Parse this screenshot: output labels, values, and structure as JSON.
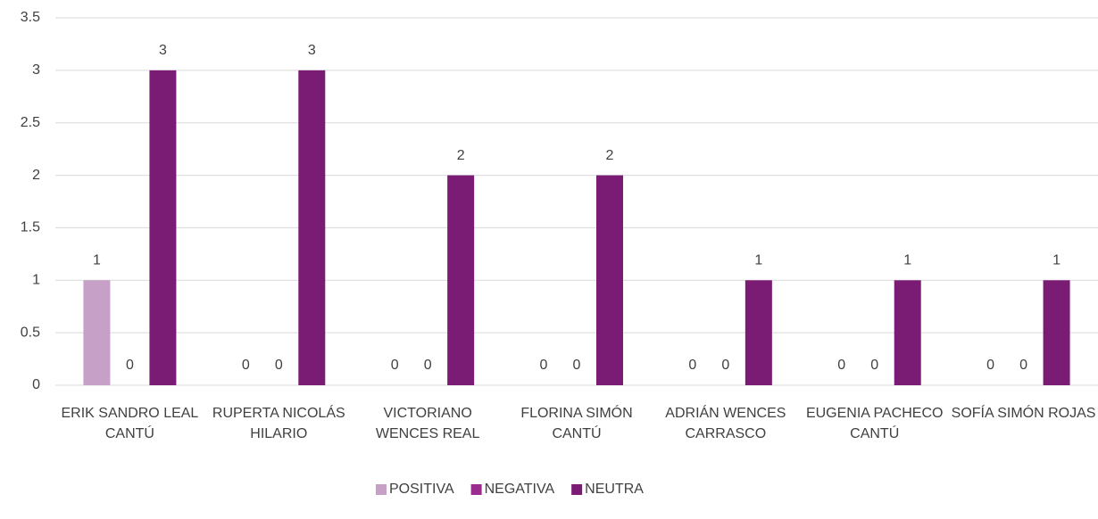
{
  "chart_data": {
    "type": "bar",
    "categories": [
      "ERIK SANDRO LEAL CANTÚ",
      "RUPERTA NICOLÁS HILARIO",
      "VICTORIANO WENCES REAL",
      "FLORINA SIMÓN CANTÚ",
      "ADRIÁN WENCES CARRASCO",
      "EUGENIA PACHECO CANTÚ",
      "SOFÍA SIMÓN ROJAS"
    ],
    "series": [
      {
        "name": "POSITIVA",
        "color": "#c6a0c6",
        "values": [
          1,
          0,
          0,
          0,
          0,
          0,
          0
        ]
      },
      {
        "name": "NEGATIVA",
        "color": "#9a2b8f",
        "values": [
          0,
          0,
          0,
          0,
          0,
          0,
          0
        ]
      },
      {
        "name": "NEUTRA",
        "color": "#7b1c74",
        "values": [
          3,
          3,
          2,
          2,
          1,
          1,
          1
        ]
      }
    ],
    "ylim": [
      0,
      3.5
    ],
    "yticks": [
      0,
      0.5,
      1,
      1.5,
      2,
      2.5,
      3,
      3.5
    ],
    "grid": true,
    "legend": "bottom"
  }
}
